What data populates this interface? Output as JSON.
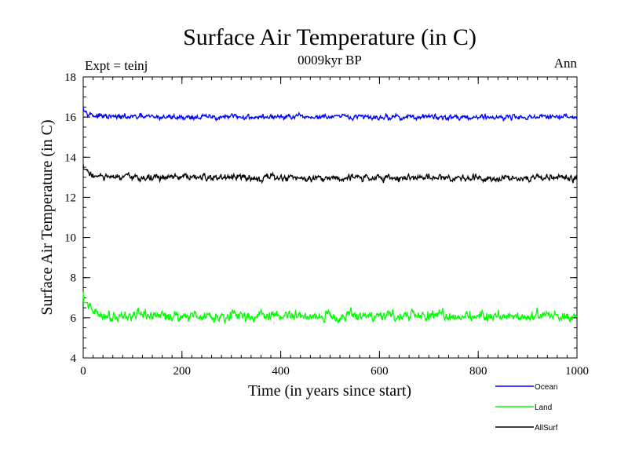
{
  "chart_data": {
    "type": "line",
    "title": "Surface Air Temperature (in C)",
    "subtitle": "0009kyr BP",
    "left_label": "Expt = teinj",
    "right_label": "Ann",
    "xlabel": "Time (in years since start)",
    "ylabel": "Surface Air Temperature (in C)",
    "xlim": [
      0,
      1000
    ],
    "ylim": [
      4,
      18
    ],
    "x_major_ticks": [
      0,
      200,
      400,
      600,
      800,
      1000
    ],
    "x_minor_step": 20,
    "y_major_ticks": [
      4,
      6,
      8,
      10,
      12,
      14,
      16,
      18
    ],
    "y_minor_step": 0.5,
    "grid": false,
    "legend_position": "bottom-right, below plot",
    "n_points": 1001,
    "series": [
      {
        "name": "Ocean",
        "color": "#0000ff",
        "start": 16.55,
        "mean": 16.0,
        "noise": 0.07,
        "min": 15.78,
        "max": 16.3
      },
      {
        "name": "Land",
        "color": "#00ff00",
        "start": 7.3,
        "mean": 6.1,
        "noise": 0.14,
        "min": 5.7,
        "max": 6.75
      },
      {
        "name": "AllSurf",
        "color": "#000000",
        "start": 13.65,
        "mean": 12.98,
        "noise": 0.09,
        "min": 12.7,
        "max": 13.4
      }
    ]
  }
}
